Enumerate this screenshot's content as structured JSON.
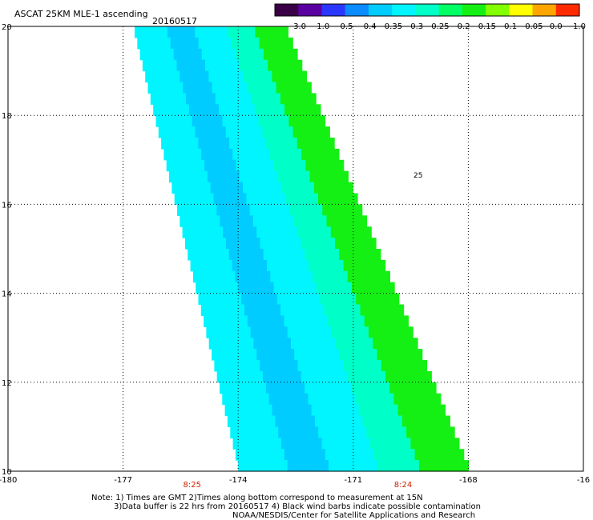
{
  "header": {
    "title": "ASCAT 25KM MLE-1 ascending",
    "date": "20160517"
  },
  "colorbar": {
    "ticks": [
      "-3.0",
      "-1.0",
      "-0.5",
      "-0.4",
      "-0.35",
      "-0.3",
      "-0.25",
      "-0.2",
      "-0.15",
      "-0.1",
      "-0.05",
      "0.0",
      "1.0"
    ],
    "colors": [
      "#3a0046",
      "#5a00a0",
      "#2a38ff",
      "#0a8cff",
      "#00ccff",
      "#00f5ff",
      "#00ffc8",
      "#00ff64",
      "#14f014",
      "#82ff00",
      "#ffff00",
      "#ffa500",
      "#ff2a00"
    ]
  },
  "chart_data": {
    "type": "heatmap",
    "title": "ASCAT 25KM MLE-1 ascending",
    "x_ticks": [
      "-180",
      "-177",
      "-174",
      "-171",
      "-168",
      "-16"
    ],
    "y_ticks": [
      "20",
      "18",
      "16",
      "14",
      "12",
      "10"
    ],
    "xlim": [
      -180,
      -165
    ],
    "ylim": [
      10,
      20
    ],
    "grid": true,
    "time_labels": [
      {
        "lon": -175.2,
        "text": "8:25"
      },
      {
        "lon": -169.7,
        "text": "8:24"
      }
    ],
    "swath": {
      "top": 20,
      "bottom": 10,
      "top_lon": [
        -176.7,
        -172.7
      ],
      "bottom_lon": [
        -174.0,
        -168.0
      ]
    },
    "value_bands": [
      {
        "label": "western edge",
        "value": -0.3
      },
      {
        "label": "central minimum",
        "value": -0.35
      },
      {
        "label": "central",
        "value": -0.3
      },
      {
        "label": "eastern",
        "value": -0.25
      },
      {
        "label": "eastern edge",
        "value": -0.15
      }
    ],
    "wind_barb_label": "25"
  },
  "notes": {
    "line1": "Note: 1) Times are GMT 2)Times along bottom correspond to measurement at 15N",
    "line2": "3)Data buffer is 22 hrs from 20160517 4) Black wind barbs indicate possible contamination",
    "line3": "NOAA/NESDIS/Center for Satellite Applications and Research"
  }
}
